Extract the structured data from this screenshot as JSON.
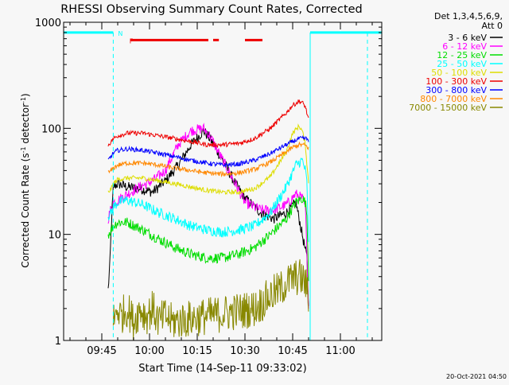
{
  "chart_data": {
    "type": "line",
    "title": "RHESSI Observing Summary Count Rates, Corrected",
    "xlabel": "Start Time (14-Sep-11 09:33:02)",
    "ylabel": "Corrected Count Rate (s⁻¹ detector⁻¹)",
    "yscale": "log",
    "ylim": [
      1,
      1000
    ],
    "xlim_minutes": [
      0,
      100
    ],
    "xticks": [
      {
        "label": "09:45",
        "t": 12
      },
      {
        "label": "10:00",
        "t": 27
      },
      {
        "label": "10:15",
        "t": 42
      },
      {
        "label": "10:30",
        "t": 57
      },
      {
        "label": "10:45",
        "t": 72
      },
      {
        "label": "11:00",
        "t": 87
      }
    ],
    "yticks": [
      {
        "label": "1",
        "v": 1
      },
      {
        "label": "10",
        "v": 10
      },
      {
        "label": "100",
        "v": 100
      },
      {
        "label": "1000",
        "v": 1000
      }
    ],
    "legend_title": [
      "Det 1,3,4,5,6,9,",
      "Att 0"
    ],
    "legend_position": "right",
    "series": [
      {
        "name": "3 - 6 keV",
        "color": "#000000",
        "t": [
          14,
          14.5,
          15,
          15.6,
          17,
          20,
          24,
          28,
          32,
          36,
          40,
          44,
          46,
          50,
          54,
          57,
          62,
          66,
          70,
          73,
          75,
          76,
          76.5,
          77
        ],
        "v": [
          3,
          5,
          12,
          28,
          30,
          28,
          27,
          25,
          32,
          45,
          70,
          95,
          80,
          50,
          30,
          22,
          16,
          14,
          16,
          20,
          10,
          7,
          6,
          2
        ]
      },
      {
        "name": "6 - 12 keV",
        "color": "#ff00ff",
        "t": [
          14,
          14.5,
          15,
          15.6,
          17,
          20,
          24,
          28,
          32,
          36,
          40,
          44,
          46,
          50,
          54,
          57,
          62,
          66,
          70,
          73,
          75,
          76,
          77
        ],
        "v": [
          14,
          16,
          18,
          20,
          21,
          24,
          28,
          32,
          40,
          70,
          95,
          100,
          85,
          50,
          30,
          20,
          17,
          17,
          19,
          24,
          22,
          18,
          2
        ]
      },
      {
        "name": "12 - 25 keV",
        "color": "#00dd00",
        "t": [
          14,
          15,
          15.6,
          17,
          20,
          25,
          30,
          35,
          40,
          45,
          50,
          55,
          60,
          65,
          70,
          73,
          75,
          76,
          76.5,
          77
        ],
        "v": [
          10,
          11,
          12,
          13,
          13,
          11,
          9,
          7.5,
          6.5,
          6,
          6,
          6.5,
          7.5,
          10,
          14,
          20,
          22,
          20,
          15,
          4
        ]
      },
      {
        "name": "25 - 50 keV",
        "color": "#00ffff",
        "t": [
          14,
          15,
          15.6,
          17,
          20,
          25,
          30,
          35,
          40,
          45,
          50,
          55,
          60,
          65,
          70,
          73,
          75,
          76,
          76.5,
          77
        ],
        "v": [
          15,
          16,
          18,
          20,
          21,
          19,
          16,
          14,
          12,
          11,
          10.5,
          11,
          12,
          16,
          28,
          45,
          50,
          40,
          30,
          8
        ]
      },
      {
        "name": "50 - 100 keV",
        "color": "#dddd00",
        "t": [
          14,
          15,
          15.6,
          17,
          20,
          25,
          30,
          35,
          40,
          45,
          50,
          55,
          60,
          65,
          70,
          72,
          74,
          75,
          76,
          77
        ],
        "v": [
          25,
          27,
          30,
          33,
          34,
          34,
          32,
          30,
          28,
          26,
          25,
          25,
          27,
          35,
          60,
          90,
          105,
          95,
          70,
          30
        ]
      },
      {
        "name": "100 - 300 keV",
        "color": "#ee0000",
        "t": [
          14,
          15,
          15.6,
          17,
          20,
          25,
          30,
          35,
          40,
          45,
          50,
          55,
          60,
          65,
          70,
          72,
          74,
          75,
          76,
          77
        ],
        "v": [
          70,
          75,
          80,
          85,
          90,
          90,
          85,
          80,
          75,
          70,
          70,
          72,
          80,
          100,
          140,
          165,
          180,
          175,
          160,
          120
        ]
      },
      {
        "name": "300 - 800 keV",
        "color": "#0000ff",
        "t": [
          14,
          15,
          15.6,
          17,
          20,
          25,
          30,
          35,
          40,
          45,
          50,
          55,
          60,
          65,
          70,
          72,
          74,
          75,
          76,
          77
        ],
        "v": [
          50,
          55,
          58,
          62,
          64,
          62,
          58,
          54,
          50,
          47,
          45,
          46,
          50,
          58,
          70,
          75,
          80,
          80,
          80,
          78
        ]
      },
      {
        "name": "800 - 7000 keV",
        "color": "#ff8800",
        "t": [
          14,
          15,
          15.6,
          17,
          20,
          25,
          30,
          35,
          40,
          45,
          50,
          55,
          60,
          65,
          70,
          72,
          74,
          75,
          76,
          77
        ],
        "v": [
          38,
          40,
          42,
          45,
          47,
          47,
          45,
          42,
          40,
          38,
          37,
          38,
          41,
          48,
          60,
          66,
          70,
          70,
          69,
          65
        ]
      },
      {
        "name": "7000 - 15000 keV",
        "color": "#888800",
        "t": [
          15.6,
          17,
          18,
          20,
          22,
          24,
          26,
          28,
          30,
          32,
          34,
          60,
          62,
          64,
          66,
          68,
          70,
          72,
          74,
          75,
          76,
          77
        ],
        "v": [
          1.5,
          2,
          1.7,
          2,
          1.5,
          2,
          1.7,
          2,
          1.5,
          1.7,
          1.5,
          2,
          2.2,
          2.5,
          2.8,
          3,
          3.5,
          3.8,
          4,
          3.8,
          3.5,
          2.5
        ]
      }
    ],
    "annotations": [
      {
        "label": "N",
        "color": "#00ffff",
        "t": 15.6,
        "v": 800
      },
      {
        "label": "F",
        "color": "#ee0000",
        "t": 19.2,
        "v": 680
      }
    ],
    "night_segments": [
      [
        0,
        15.6
      ],
      [
        77.5,
        100
      ]
    ],
    "flare_segments": [
      [
        21,
        45.5
      ],
      [
        47,
        48.8
      ],
      [
        57,
        62.5
      ]
    ]
  },
  "footer_timestamp": "20-Oct-2021 04:50"
}
